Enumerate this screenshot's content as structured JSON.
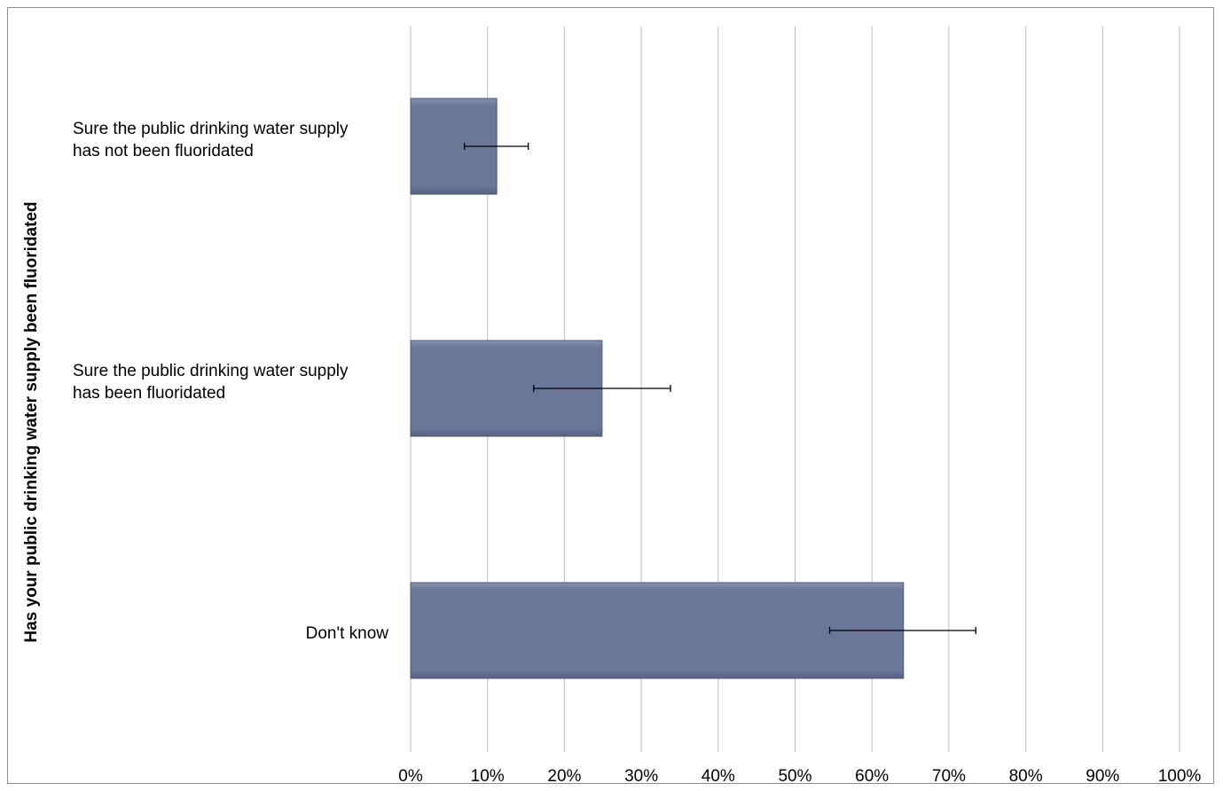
{
  "chart_data": {
    "type": "bar",
    "orientation": "horizontal",
    "ylabel": "Has your public drinking water supply been fluoridated",
    "xlabel": "",
    "categories": [
      [
        "Sure the public drinking water supply",
        "has not been fluoridated"
      ],
      [
        "Sure the public drinking water supply",
        "has been fluoridated"
      ],
      [
        "Don't know"
      ]
    ],
    "values": [
      11.2,
      24.9,
      64.1
    ],
    "error_low": [
      7.0,
      16.0,
      54.5
    ],
    "error_high": [
      15.3,
      33.8,
      73.5
    ],
    "xlim": [
      0,
      100
    ],
    "x_ticks": [
      "0%",
      "10%",
      "20%",
      "30%",
      "40%",
      "50%",
      "60%",
      "70%",
      "80%",
      "90%",
      "100%"
    ],
    "grid": "vertical",
    "legend": "none",
    "bar_color": "#6a7797",
    "colors": {
      "bar_fill": "#6a7797",
      "bar_highlight": "#8491b0",
      "bar_edge": "#4e5a78",
      "grid": "#bdbdbd",
      "frame": "#8c8c8c"
    }
  }
}
